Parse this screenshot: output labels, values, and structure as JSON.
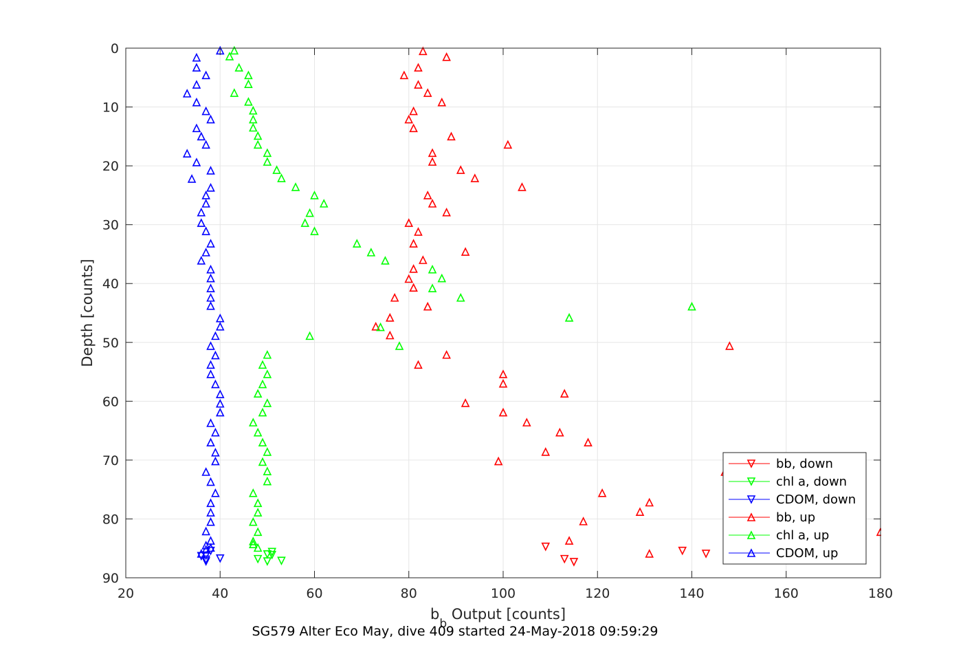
{
  "chart_data": {
    "type": "scatter",
    "xlabel_main": "b",
    "xlabel_sub": "b",
    "xlabel_rest": " Output [counts]",
    "ylabel": "Depth [counts]",
    "caption": "SG579 Alter Eco May, dive 409 started 24-May-2018 09:59:29",
    "xlim": [
      20,
      180
    ],
    "ylim": [
      0,
      90
    ],
    "y_reversed": true,
    "grid": true,
    "legend_position": "bottom-right",
    "x_ticks": [
      20,
      40,
      60,
      80,
      100,
      120,
      140,
      160,
      180
    ],
    "y_ticks": [
      0,
      10,
      20,
      30,
      40,
      50,
      60,
      70,
      80,
      90
    ],
    "legend": [
      {
        "label": "bb, down",
        "color": "#ff0000",
        "marker": "triangle-down"
      },
      {
        "label": "chl a, down",
        "color": "#00ff00",
        "marker": "triangle-down"
      },
      {
        "label": "CDOM, down",
        "color": "#0000ff",
        "marker": "triangle-down"
      },
      {
        "label": "bb, up",
        "color": "#ff0000",
        "marker": "triangle-up"
      },
      {
        "label": "chl a, up",
        "color": "#00ff00",
        "marker": "triangle-up"
      },
      {
        "label": "CDOM, up",
        "color": "#0000ff",
        "marker": "triangle-up"
      }
    ],
    "series": [
      {
        "name": "bb, down",
        "color": "#ff0000",
        "marker": "triangle-down",
        "points": [
          [
            109,
            84.7
          ],
          [
            113,
            86.8
          ],
          [
            115,
            87.3
          ],
          [
            138,
            85.4
          ],
          [
            143,
            85.9
          ]
        ]
      },
      {
        "name": "chl a, down",
        "color": "#00ff00",
        "marker": "triangle-down",
        "points": [
          [
            48,
            86.8
          ],
          [
            50,
            87.2
          ],
          [
            50,
            86.0
          ],
          [
            51,
            85.6
          ],
          [
            51,
            86.1
          ],
          [
            53,
            87.1
          ]
        ]
      },
      {
        "name": "CDOM, down",
        "color": "#0000ff",
        "marker": "triangle-down",
        "points": [
          [
            37,
            86.9
          ],
          [
            37,
            87.2
          ],
          [
            38,
            85.4
          ],
          [
            36,
            86.3
          ],
          [
            37,
            86.2
          ],
          [
            40,
            86.7
          ]
        ]
      },
      {
        "name": "bb, up",
        "color": "#ff0000",
        "marker": "triangle-up",
        "points": [
          [
            83,
            0.5
          ],
          [
            88,
            1.5
          ],
          [
            82,
            3.3
          ],
          [
            79,
            4.6
          ],
          [
            82,
            6.2
          ],
          [
            84,
            7.6
          ],
          [
            87,
            9.2
          ],
          [
            81,
            10.7
          ],
          [
            80,
            12.1
          ],
          [
            81,
            13.6
          ],
          [
            89,
            15.0
          ],
          [
            101,
            16.4
          ],
          [
            85,
            17.8
          ],
          [
            85,
            19.3
          ],
          [
            91,
            20.7
          ],
          [
            94,
            22.1
          ],
          [
            104,
            23.6
          ],
          [
            84,
            25.0
          ],
          [
            85,
            26.4
          ],
          [
            88,
            27.9
          ],
          [
            80,
            29.7
          ],
          [
            82,
            31.2
          ],
          [
            81,
            33.2
          ],
          [
            92,
            34.6
          ],
          [
            83,
            36.0
          ],
          [
            81,
            37.5
          ],
          [
            80,
            39.2
          ],
          [
            81,
            40.7
          ],
          [
            77,
            42.4
          ],
          [
            84,
            43.9
          ],
          [
            76,
            45.8
          ],
          [
            73,
            47.3
          ],
          [
            76,
            48.8
          ],
          [
            148,
            50.6
          ],
          [
            88,
            52.1
          ],
          [
            82,
            53.8
          ],
          [
            100,
            55.4
          ],
          [
            100,
            57.0
          ],
          [
            113,
            58.7
          ],
          [
            92,
            60.3
          ],
          [
            100,
            61.9
          ],
          [
            105,
            63.6
          ],
          [
            112,
            65.3
          ],
          [
            118,
            67.0
          ],
          [
            109,
            68.6
          ],
          [
            99,
            70.2
          ],
          [
            147,
            72.0
          ],
          [
            121,
            75.6
          ],
          [
            131,
            77.2
          ],
          [
            129,
            78.8
          ],
          [
            117,
            80.4
          ],
          [
            180,
            82.2
          ],
          [
            114,
            83.7
          ],
          [
            131,
            85.9
          ]
        ]
      },
      {
        "name": "chl a, up",
        "color": "#00ff00",
        "marker": "triangle-up",
        "points": [
          [
            43,
            0.4
          ],
          [
            42,
            1.4
          ],
          [
            44,
            3.3
          ],
          [
            46,
            4.6
          ],
          [
            46,
            6.1
          ],
          [
            43,
            7.6
          ],
          [
            46,
            9.1
          ],
          [
            47,
            10.6
          ],
          [
            47,
            12.1
          ],
          [
            47,
            13.5
          ],
          [
            48,
            14.9
          ],
          [
            48,
            16.4
          ],
          [
            50,
            17.8
          ],
          [
            50,
            19.3
          ],
          [
            52,
            20.7
          ],
          [
            53,
            22.1
          ],
          [
            56,
            23.6
          ],
          [
            60,
            25.0
          ],
          [
            62,
            26.4
          ],
          [
            59,
            28.0
          ],
          [
            58,
            29.7
          ],
          [
            60,
            31.1
          ],
          [
            69,
            33.2
          ],
          [
            72,
            34.7
          ],
          [
            75,
            36.1
          ],
          [
            85,
            37.6
          ],
          [
            87,
            39.1
          ],
          [
            85,
            40.8
          ],
          [
            91,
            42.4
          ],
          [
            140,
            43.9
          ],
          [
            114,
            45.8
          ],
          [
            74,
            47.4
          ],
          [
            59,
            48.9
          ],
          [
            78,
            50.6
          ],
          [
            50,
            52.1
          ],
          [
            49,
            53.8
          ],
          [
            50,
            55.4
          ],
          [
            49,
            57.1
          ],
          [
            48,
            58.7
          ],
          [
            50,
            60.3
          ],
          [
            49,
            61.9
          ],
          [
            47,
            63.6
          ],
          [
            48,
            65.3
          ],
          [
            49,
            67.0
          ],
          [
            50,
            68.6
          ],
          [
            49,
            70.3
          ],
          [
            50,
            71.9
          ],
          [
            50,
            73.6
          ],
          [
            47,
            75.6
          ],
          [
            48,
            77.3
          ],
          [
            48,
            78.9
          ],
          [
            47,
            80.5
          ],
          [
            48,
            82.2
          ],
          [
            47,
            83.8
          ],
          [
            47,
            84.3
          ],
          [
            48,
            84.9
          ]
        ]
      },
      {
        "name": "CDOM, up",
        "color": "#0000ff",
        "marker": "triangle-up",
        "points": [
          [
            40,
            0.4
          ],
          [
            35,
            1.6
          ],
          [
            35,
            3.3
          ],
          [
            37,
            4.6
          ],
          [
            35,
            6.2
          ],
          [
            33,
            7.7
          ],
          [
            35,
            9.2
          ],
          [
            37,
            10.7
          ],
          [
            38,
            12.1
          ],
          [
            35,
            13.6
          ],
          [
            36,
            15.0
          ],
          [
            37,
            16.4
          ],
          [
            33,
            17.9
          ],
          [
            35,
            19.4
          ],
          [
            38,
            20.8
          ],
          [
            34,
            22.2
          ],
          [
            38,
            23.7
          ],
          [
            37,
            25.0
          ],
          [
            37,
            26.4
          ],
          [
            36,
            27.9
          ],
          [
            36,
            29.7
          ],
          [
            37,
            31.1
          ],
          [
            38,
            33.2
          ],
          [
            37,
            34.7
          ],
          [
            36,
            36.1
          ],
          [
            38,
            37.6
          ],
          [
            38,
            39.1
          ],
          [
            38,
            40.8
          ],
          [
            38,
            42.4
          ],
          [
            38,
            43.8
          ],
          [
            40,
            45.9
          ],
          [
            40,
            47.3
          ],
          [
            39,
            48.9
          ],
          [
            38,
            50.6
          ],
          [
            39,
            52.2
          ],
          [
            38,
            53.8
          ],
          [
            38,
            55.4
          ],
          [
            39,
            57.1
          ],
          [
            40,
            58.8
          ],
          [
            40,
            60.4
          ],
          [
            40,
            61.9
          ],
          [
            38,
            63.7
          ],
          [
            39,
            65.3
          ],
          [
            38,
            67.0
          ],
          [
            39,
            68.7
          ],
          [
            39,
            70.2
          ],
          [
            37,
            72.0
          ],
          [
            38,
            73.7
          ],
          [
            39,
            75.6
          ],
          [
            38,
            77.3
          ],
          [
            38,
            78.9
          ],
          [
            38,
            80.5
          ],
          [
            37,
            82.1
          ],
          [
            38,
            83.7
          ],
          [
            37,
            84.5
          ],
          [
            37,
            85.2
          ],
          [
            38,
            84.9
          ],
          [
            36,
            85.9
          ]
        ]
      }
    ]
  }
}
